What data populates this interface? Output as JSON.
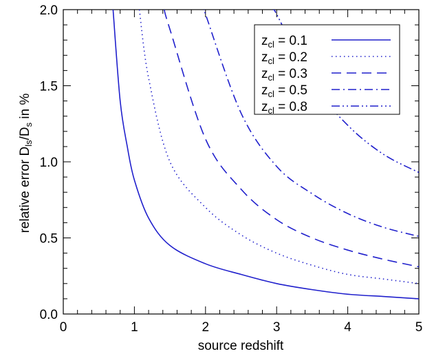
{
  "chart_data": {
    "type": "line",
    "xlabel": "source redshift",
    "ylabel": {
      "prefix": "relative error D",
      "sub1": "ls",
      "mid": "/D",
      "sub2": "s",
      "suffix": " in %"
    },
    "xlim": [
      0,
      5
    ],
    "ylim": [
      0,
      2
    ],
    "x_ticks": [
      {
        "value": 0,
        "label": "0"
      },
      {
        "value": 1,
        "label": "1"
      },
      {
        "value": 2,
        "label": "2"
      },
      {
        "value": 3,
        "label": "3"
      },
      {
        "value": 4,
        "label": "4"
      },
      {
        "value": 5,
        "label": "5"
      }
    ],
    "y_ticks": [
      {
        "value": 0,
        "label": "0.0"
      },
      {
        "value": 0.5,
        "label": "0.5"
      },
      {
        "value": 1,
        "label": "1.0"
      },
      {
        "value": 1.5,
        "label": "1.5"
      },
      {
        "value": 2,
        "label": "2.0"
      }
    ],
    "grid": false,
    "legend_position": "top-right",
    "color": "#1f1fcc",
    "series": [
      {
        "name": "z",
        "sub": "cl",
        "value_text": " = 0.1",
        "dash": "solid",
        "x": [
          0.7,
          0.8,
          0.9,
          1.0,
          1.2,
          1.5,
          2.0,
          2.5,
          3.0,
          3.5,
          4.0,
          4.5,
          5.0
        ],
        "y": [
          2.0,
          1.4,
          1.1,
          0.88,
          0.63,
          0.45,
          0.33,
          0.26,
          0.2,
          0.16,
          0.13,
          0.115,
          0.1
        ]
      },
      {
        "name": "z",
        "sub": "cl",
        "value_text": " = 0.2",
        "dash": "dotted",
        "x": [
          1.07,
          1.2,
          1.5,
          2.0,
          2.5,
          3.0,
          3.5,
          4.0,
          4.5,
          5.0
        ],
        "y": [
          2.0,
          1.55,
          1.0,
          0.7,
          0.52,
          0.4,
          0.32,
          0.26,
          0.23,
          0.2
        ]
      },
      {
        "name": "z",
        "sub": "cl",
        "value_text": " = 0.3",
        "dash": "dashed",
        "x": [
          1.42,
          1.5,
          2.0,
          2.5,
          3.0,
          3.5,
          4.0,
          4.5,
          5.0
        ],
        "y": [
          2.0,
          1.87,
          1.15,
          0.82,
          0.62,
          0.5,
          0.42,
          0.36,
          0.31
        ]
      },
      {
        "name": "z",
        "sub": "cl",
        "value_text": " = 0.5",
        "dash": "dash-dot",
        "x": [
          1.98,
          2.0,
          2.5,
          3.0,
          3.5,
          4.0,
          4.5,
          5.0
        ],
        "y": [
          2.0,
          1.97,
          1.32,
          0.97,
          0.79,
          0.66,
          0.57,
          0.51
        ]
      },
      {
        "name": "z",
        "sub": "cl",
        "value_text": " = 0.8",
        "dash": "dash-dot-dot",
        "x": [
          2.95,
          3.0,
          3.5,
          4.0,
          4.5,
          5.0
        ],
        "y": [
          2.0,
          1.97,
          1.52,
          1.24,
          1.05,
          0.93
        ]
      }
    ]
  }
}
